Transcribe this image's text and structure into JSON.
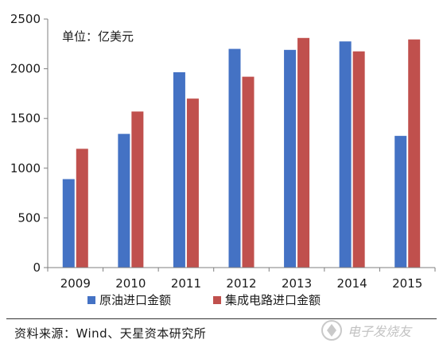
{
  "chart_data": {
    "type": "bar",
    "categories": [
      "2009",
      "2010",
      "2011",
      "2012",
      "2013",
      "2014",
      "2015"
    ],
    "series": [
      {
        "name": "原油进口金额",
        "color": "#4472C4",
        "values": [
          890,
          1345,
          1965,
          2200,
          2190,
          2275,
          1325
        ]
      },
      {
        "name": "集成电路进口金额",
        "color": "#C0504D",
        "values": [
          1195,
          1570,
          1700,
          1920,
          2310,
          2175,
          2295
        ]
      }
    ],
    "ylim": [
      0,
      2500
    ],
    "yticks": [
      0,
      500,
      1000,
      1500,
      2000,
      2500
    ],
    "unit_label": "单位：亿美元",
    "legend_position": "bottom",
    "grid": false
  },
  "source": "资料来源：Wind、天星资本研究所",
  "watermark_text": "电子发烧友",
  "watermark_icon": "logo-icon"
}
